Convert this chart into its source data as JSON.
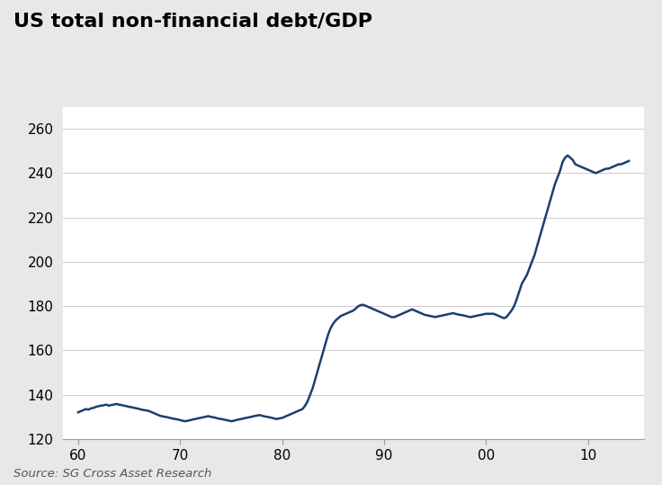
{
  "title": "US total non-financial debt/GDP",
  "source_text": "Source: SG Cross Asset Research",
  "line_color": "#1a3f6f",
  "line_width": 1.8,
  "background_color": "#e8e8e8",
  "plot_bg_color": "#ffffff",
  "ylim": [
    120,
    270
  ],
  "yticks": [
    120,
    140,
    160,
    180,
    200,
    220,
    240,
    260
  ],
  "xticklabels": [
    "60",
    "70",
    "80",
    "90",
    "00",
    "10"
  ],
  "title_fontsize": 16,
  "tick_fontsize": 11,
  "source_fontsize": 9.5,
  "x": [
    60.0,
    60.25,
    60.5,
    60.75,
    61.0,
    61.25,
    61.5,
    61.75,
    62.0,
    62.25,
    62.5,
    62.75,
    63.0,
    63.25,
    63.5,
    63.75,
    64.0,
    64.25,
    64.5,
    64.75,
    65.0,
    65.25,
    65.5,
    65.75,
    66.0,
    66.25,
    66.5,
    66.75,
    67.0,
    67.25,
    67.5,
    67.75,
    68.0,
    68.25,
    68.5,
    68.75,
    69.0,
    69.25,
    69.5,
    69.75,
    70.0,
    70.25,
    70.5,
    70.75,
    71.0,
    71.25,
    71.5,
    71.75,
    72.0,
    72.25,
    72.5,
    72.75,
    73.0,
    73.25,
    73.5,
    73.75,
    74.0,
    74.25,
    74.5,
    74.75,
    75.0,
    75.25,
    75.5,
    75.75,
    76.0,
    76.25,
    76.5,
    76.75,
    77.0,
    77.25,
    77.5,
    77.75,
    78.0,
    78.25,
    78.5,
    78.75,
    79.0,
    79.25,
    79.5,
    79.75,
    80.0,
    80.25,
    80.5,
    80.75,
    81.0,
    81.25,
    81.5,
    81.75,
    82.0,
    82.25,
    82.5,
    82.75,
    83.0,
    83.25,
    83.5,
    83.75,
    84.0,
    84.25,
    84.5,
    84.75,
    85.0,
    85.25,
    85.5,
    85.75,
    86.0,
    86.25,
    86.5,
    86.75,
    87.0,
    87.25,
    87.5,
    87.75,
    88.0,
    88.25,
    88.5,
    88.75,
    89.0,
    89.25,
    89.5,
    89.75,
    90.0,
    90.25,
    90.5,
    90.75,
    91.0,
    91.25,
    91.5,
    91.75,
    92.0,
    92.25,
    92.5,
    92.75,
    93.0,
    93.25,
    93.5,
    93.75,
    94.0,
    94.25,
    94.5,
    94.75,
    95.0,
    95.25,
    95.5,
    95.75,
    96.0,
    96.25,
    96.5,
    96.75,
    97.0,
    97.25,
    97.5,
    97.75,
    98.0,
    98.25,
    98.5,
    98.75,
    99.0,
    99.25,
    99.5,
    99.75,
    100.0,
    100.25,
    100.5,
    100.75,
    101.0,
    101.25,
    101.5,
    101.75,
    102.0,
    102.25,
    102.5,
    102.75,
    103.0,
    103.25,
    103.5,
    103.75,
    104.0,
    104.25,
    104.5,
    104.75,
    105.0,
    105.25,
    105.5,
    105.75,
    106.0,
    106.25,
    106.5,
    106.75,
    107.0,
    107.25,
    107.5,
    107.75,
    108.0,
    108.25,
    108.5,
    108.75,
    109.0,
    109.25,
    109.5,
    109.75,
    110.0,
    110.25,
    110.5,
    110.75,
    111.0,
    111.25,
    111.5,
    111.75,
    112.0,
    112.25,
    112.5,
    112.75,
    113.0,
    113.25,
    113.5,
    113.75,
    114.0
  ],
  "values": [
    132.0,
    132.5,
    133.0,
    133.5,
    133.2,
    133.8,
    134.0,
    134.5,
    134.8,
    135.0,
    135.2,
    135.5,
    135.0,
    135.3,
    135.5,
    135.8,
    135.5,
    135.3,
    135.0,
    134.8,
    134.5,
    134.3,
    134.0,
    133.8,
    133.5,
    133.2,
    133.0,
    132.8,
    132.5,
    132.0,
    131.5,
    131.0,
    130.5,
    130.2,
    130.0,
    129.8,
    129.5,
    129.2,
    129.0,
    128.8,
    128.5,
    128.2,
    128.0,
    128.2,
    128.5,
    128.8,
    129.0,
    129.3,
    129.5,
    129.8,
    130.0,
    130.3,
    130.0,
    129.8,
    129.5,
    129.2,
    129.0,
    128.8,
    128.5,
    128.3,
    128.0,
    128.2,
    128.5,
    128.8,
    129.0,
    129.3,
    129.5,
    129.8,
    130.0,
    130.3,
    130.5,
    130.8,
    130.5,
    130.2,
    130.0,
    129.8,
    129.5,
    129.2,
    129.0,
    129.3,
    129.5,
    130.0,
    130.5,
    131.0,
    131.5,
    132.0,
    132.5,
    133.0,
    133.5,
    135.0,
    137.0,
    140.0,
    143.0,
    147.0,
    151.0,
    155.0,
    159.0,
    163.0,
    167.0,
    170.0,
    172.0,
    173.5,
    174.5,
    175.5,
    176.0,
    176.5,
    177.0,
    177.5,
    178.0,
    179.0,
    180.0,
    180.5,
    180.5,
    180.0,
    179.5,
    179.0,
    178.5,
    178.0,
    177.5,
    177.0,
    176.5,
    176.0,
    175.5,
    175.0,
    175.0,
    175.5,
    176.0,
    176.5,
    177.0,
    177.5,
    178.0,
    178.5,
    178.0,
    177.5,
    177.0,
    176.5,
    176.0,
    175.8,
    175.5,
    175.3,
    175.0,
    175.3,
    175.5,
    175.8,
    176.0,
    176.3,
    176.5,
    176.8,
    176.5,
    176.2,
    176.0,
    175.8,
    175.5,
    175.2,
    175.0,
    175.3,
    175.5,
    175.8,
    176.0,
    176.3,
    176.5,
    176.5,
    176.5,
    176.5,
    176.0,
    175.5,
    175.0,
    174.5,
    175.0,
    176.5,
    178.0,
    180.0,
    183.0,
    186.5,
    190.0,
    192.0,
    194.0,
    197.0,
    200.0,
    203.0,
    207.0,
    211.0,
    215.0,
    219.0,
    223.0,
    227.0,
    231.0,
    235.0,
    238.0,
    241.0,
    245.0,
    247.0,
    248.0,
    247.0,
    246.0,
    244.0,
    243.5,
    243.0,
    242.5,
    242.0,
    241.5,
    241.0,
    240.5,
    240.0,
    240.5,
    241.0,
    241.5,
    242.0,
    242.0,
    242.5,
    243.0,
    243.5,
    244.0,
    244.0,
    244.5,
    245.0,
    245.5
  ]
}
